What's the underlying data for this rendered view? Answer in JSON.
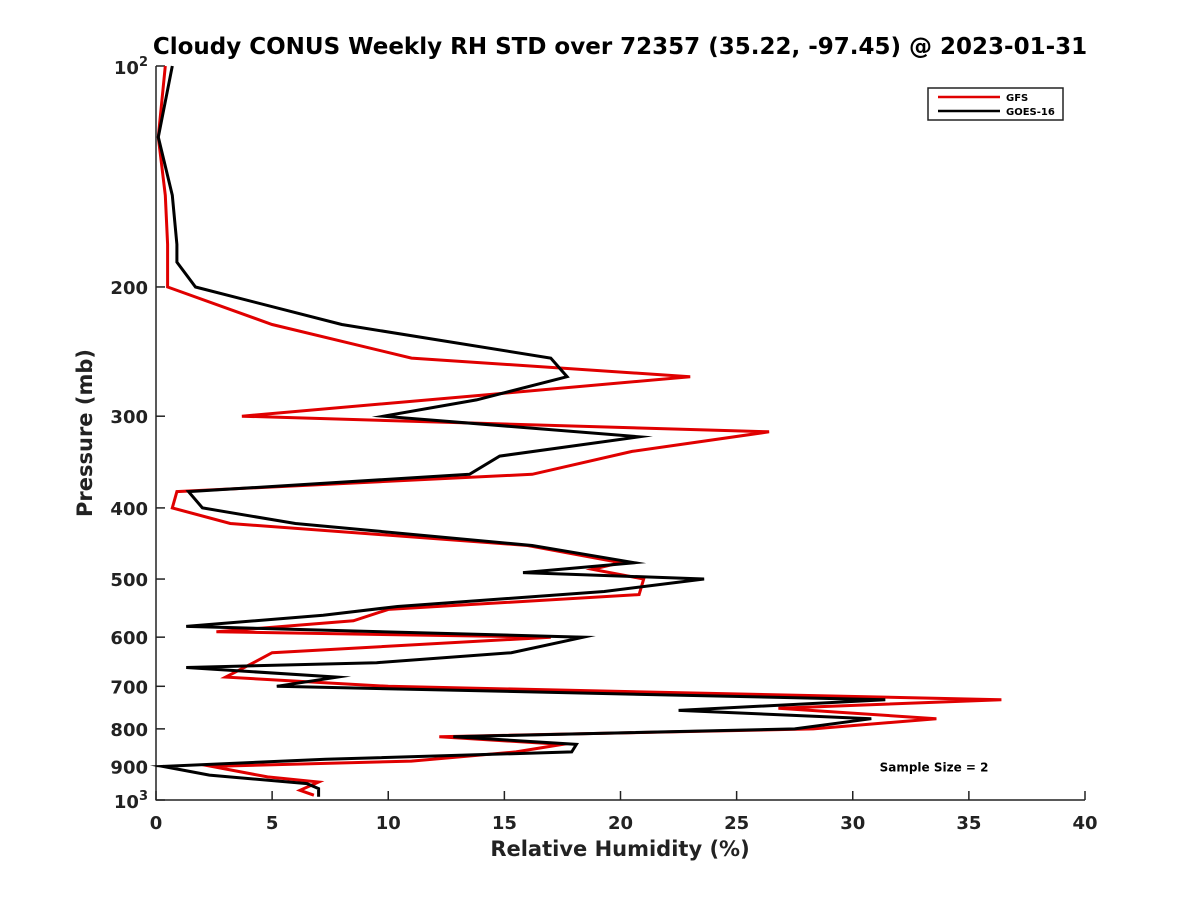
{
  "chart_data": {
    "type": "line",
    "title": "Cloudy CONUS Weekly RH STD over 72357 (35.22, -97.45) @ 2023-01-31",
    "xlabel": "Relative Humidity (%)",
    "ylabel": "Pressure (mb)",
    "xlim": [
      0,
      40
    ],
    "ylim": [
      100,
      1000
    ],
    "y_scale": "log",
    "y_reversed": true,
    "x_ticks": [
      {
        "value": 0,
        "label": "0"
      },
      {
        "value": 5,
        "label": "5"
      },
      {
        "value": 10,
        "label": "10"
      },
      {
        "value": 15,
        "label": "15"
      },
      {
        "value": 20,
        "label": "20"
      },
      {
        "value": 25,
        "label": "25"
      },
      {
        "value": 30,
        "label": "30"
      },
      {
        "value": 35,
        "label": "35"
      },
      {
        "value": 40,
        "label": "40"
      }
    ],
    "y_ticks": [
      {
        "value": 200,
        "label": "200"
      },
      {
        "value": 300,
        "label": "300"
      },
      {
        "value": 400,
        "label": "400"
      },
      {
        "value": 500,
        "label": "500"
      },
      {
        "value": 600,
        "label": "600"
      },
      {
        "value": 700,
        "label": "700"
      },
      {
        "value": 800,
        "label": "800"
      },
      {
        "value": 900,
        "label": "900"
      }
    ],
    "y_power_ticks": [
      {
        "value": 100,
        "base": "10",
        "exp": "2"
      },
      {
        "value": 1000,
        "base": "10",
        "exp": "3"
      }
    ],
    "legend_position": "top-right",
    "grid": false,
    "series": [
      {
        "name": "GFS",
        "color": "#e00000",
        "points": [
          [
            0.4,
            100
          ],
          [
            0.1,
            125
          ],
          [
            0.4,
            150
          ],
          [
            0.5,
            175
          ],
          [
            0.5,
            200
          ],
          [
            5.0,
            225
          ],
          [
            11.0,
            250
          ],
          [
            23.0,
            265
          ],
          [
            14.5,
            280
          ],
          [
            3.7,
            300
          ],
          [
            26.4,
            315
          ],
          [
            20.5,
            335
          ],
          [
            16.2,
            360
          ],
          [
            0.9,
            380
          ],
          [
            0.7,
            400
          ],
          [
            3.2,
            420
          ],
          [
            16.0,
            450
          ],
          [
            20.0,
            475
          ],
          [
            18.8,
            485
          ],
          [
            21.0,
            500
          ],
          [
            20.8,
            525
          ],
          [
            10.0,
            550
          ],
          [
            8.5,
            570
          ],
          [
            2.6,
            590
          ],
          [
            17.0,
            600
          ],
          [
            5.0,
            630
          ],
          [
            4.2,
            650
          ],
          [
            3.0,
            680
          ],
          [
            10.0,
            700
          ],
          [
            36.4,
            730
          ],
          [
            26.8,
            750
          ],
          [
            33.6,
            775
          ],
          [
            28.3,
            800
          ],
          [
            12.2,
            820
          ],
          [
            17.5,
            840
          ],
          [
            15.5,
            860
          ],
          [
            11.0,
            885
          ],
          [
            2.4,
            900
          ],
          [
            4.8,
            930
          ],
          [
            7.0,
            945
          ],
          [
            6.2,
            970
          ],
          [
            6.8,
            985
          ]
        ]
      },
      {
        "name": "GOES-16",
        "color": "#000000",
        "points": [
          [
            0.7,
            100
          ],
          [
            0.1,
            125
          ],
          [
            0.7,
            150
          ],
          [
            0.9,
            175
          ],
          [
            0.9,
            185
          ],
          [
            1.7,
            200
          ],
          [
            8.0,
            225
          ],
          [
            17.0,
            250
          ],
          [
            17.7,
            265
          ],
          [
            13.8,
            285
          ],
          [
            9.8,
            300
          ],
          [
            20.8,
            320
          ],
          [
            14.8,
            340
          ],
          [
            13.5,
            360
          ],
          [
            1.4,
            380
          ],
          [
            2.0,
            400
          ],
          [
            6.0,
            420
          ],
          [
            16.2,
            450
          ],
          [
            20.6,
            475
          ],
          [
            15.8,
            490
          ],
          [
            23.6,
            500
          ],
          [
            19.3,
            520
          ],
          [
            10.4,
            545
          ],
          [
            7.2,
            560
          ],
          [
            1.3,
            580
          ],
          [
            18.4,
            600
          ],
          [
            15.3,
            630
          ],
          [
            9.5,
            650
          ],
          [
            1.3,
            660
          ],
          [
            7.8,
            680
          ],
          [
            5.2,
            700
          ],
          [
            31.4,
            730
          ],
          [
            22.5,
            755
          ],
          [
            30.8,
            775
          ],
          [
            27.5,
            800
          ],
          [
            12.8,
            820
          ],
          [
            18.1,
            840
          ],
          [
            17.9,
            860
          ],
          [
            7.3,
            880
          ],
          [
            0.3,
            900
          ],
          [
            2.3,
            925
          ],
          [
            6.5,
            950
          ],
          [
            7.0,
            965
          ],
          [
            7.0,
            990
          ]
        ]
      }
    ],
    "annotations": [
      {
        "text": "Sample Size = 2",
        "x": 33.5,
        "y": 900
      }
    ]
  }
}
